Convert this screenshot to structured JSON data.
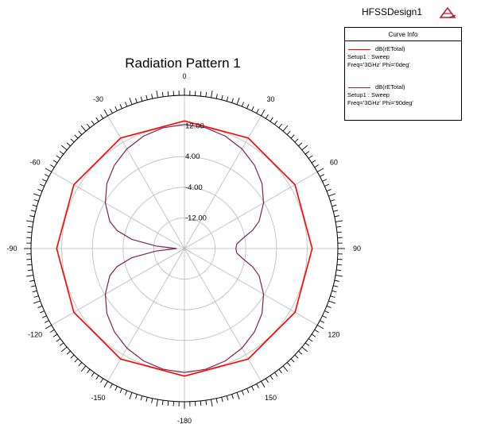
{
  "header": {
    "design_name": "HFSSDesign1",
    "logo_icon": "ansoft-logo-icon"
  },
  "legend": {
    "title": "Curve Info",
    "entries": [
      {
        "name": "dB(rETotal)",
        "setup": "Setup1 : Sweep",
        "params": "Freq='3GHz' Phi='0deg'",
        "color": "#ff0000"
      },
      {
        "name": "dB(rETotal)",
        "setup": "Setup1 : Sweep",
        "params": "Freq='3GHz' Phi='90deg'",
        "color": "#7a2450"
      }
    ]
  },
  "chart_data": {
    "type": "polar",
    "title": "Radiation Pattern 1",
    "angle_labels": [
      "0",
      "30",
      "60",
      "90",
      "120",
      "150",
      "-180",
      "-150",
      "-120",
      "-90",
      "-60",
      "-30"
    ],
    "radial_range": [
      -20,
      20
    ],
    "radial_tick_labels": [
      "12.00",
      "4.00",
      "-4.00",
      "-12.00"
    ],
    "grid": true,
    "series": [
      {
        "name": "dB(rETotal) Setup1 : Sweep Freq='3GHz' Phi='0deg'",
        "theta": [
          0,
          30,
          60,
          90,
          120,
          150,
          180,
          210,
          240,
          270,
          300,
          330
        ],
        "values": [
          13.3,
          13.3,
          13.3,
          13.3,
          13.3,
          13.3,
          13.3,
          13.3,
          13.3,
          13.3,
          13.3,
          13.3
        ]
      },
      {
        "name": "dB(rETotal) Setup1 : Sweep Freq='3GHz' Phi='90deg'",
        "theta": [
          0,
          10,
          20,
          30,
          40,
          50,
          60,
          70,
          75,
          80,
          85,
          90,
          95,
          100,
          105,
          110,
          120,
          130,
          140,
          150,
          160,
          170,
          180,
          190,
          200,
          210,
          220,
          230,
          240,
          250,
          255,
          260,
          265,
          270,
          275,
          280,
          285,
          290,
          300,
          310,
          320,
          330,
          340,
          350
        ],
        "values": [
          12.4,
          12.0,
          11.2,
          10.0,
          8.4,
          6.4,
          3.8,
          0.7,
          -1.6,
          -4.5,
          -6.3,
          -6.6,
          -6.3,
          -4.5,
          -1.6,
          0.7,
          3.8,
          6.4,
          8.4,
          10.0,
          11.2,
          12.0,
          12.4,
          12.0,
          11.2,
          10.0,
          8.4,
          6.4,
          3.8,
          0.7,
          -1.8,
          -6.0,
          -12.5,
          -18.0,
          -12.5,
          -6.0,
          -1.8,
          0.7,
          3.8,
          6.4,
          8.4,
          10.0,
          11.2,
          12.0
        ]
      }
    ]
  }
}
